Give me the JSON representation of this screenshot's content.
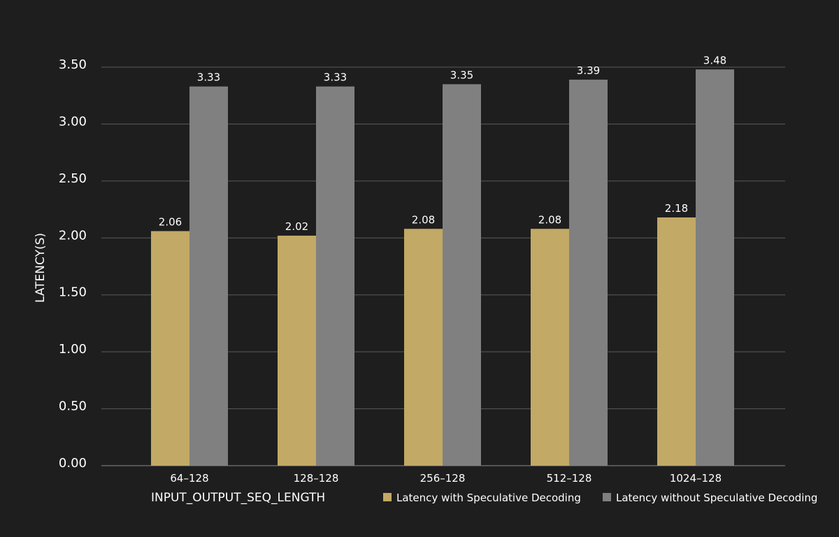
{
  "chart_data": {
    "type": "bar",
    "title": "",
    "xlabel": "INPUT_OUTPUT_SEQ_LENGTH",
    "ylabel": "LATENCY(S)",
    "ylim": [
      0,
      3.5
    ],
    "yticks": [
      "0.00",
      "0.50",
      "1.00",
      "1.50",
      "2.00",
      "2.50",
      "3.00",
      "3.50"
    ],
    "grid": true,
    "legend_position": "bottom-right",
    "categories": [
      "64–128",
      "128–128",
      "256–128",
      "512–128",
      "1024–128"
    ],
    "series": [
      {
        "name": "Latency with Speculative Decoding",
        "color": "#c2a965",
        "values": [
          2.06,
          2.02,
          2.08,
          2.08,
          2.18
        ],
        "labels": [
          "2.06",
          "2.02",
          "2.08",
          "2.08",
          "2.18"
        ]
      },
      {
        "name": "Latency without Speculative Decoding",
        "color": "#808080",
        "values": [
          3.33,
          3.33,
          3.35,
          3.39,
          3.48
        ],
        "labels": [
          "3.33",
          "3.33",
          "3.35",
          "3.39",
          "3.48"
        ]
      }
    ]
  },
  "colors": {
    "background": "#1e1e1e",
    "gridline": "#5a5a5a",
    "text": "#ffffff"
  }
}
